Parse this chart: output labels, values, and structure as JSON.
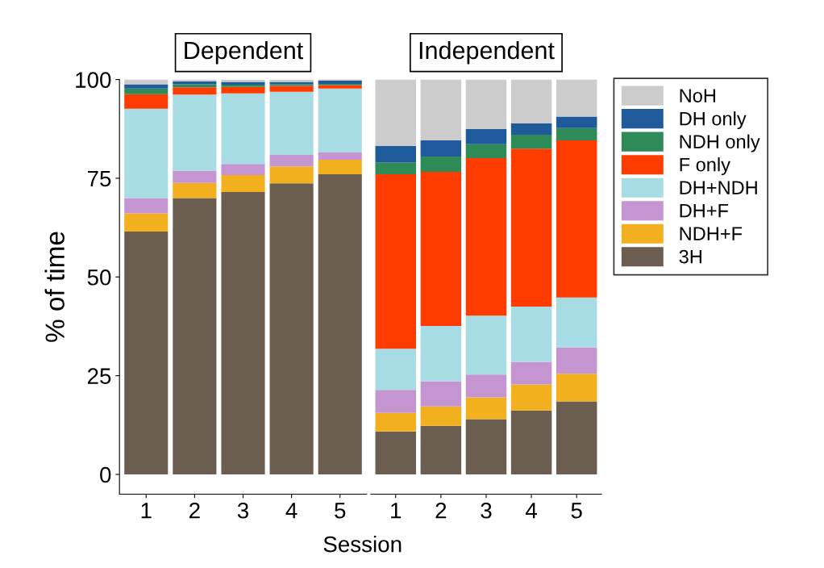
{
  "chart_data": [
    {
      "type": "bar",
      "title": "Dependent",
      "ylabel": "% of time",
      "xlabel": "Session",
      "stacked": true,
      "categories": [
        "1",
        "2",
        "3",
        "4",
        "5"
      ],
      "ylim": [
        -5,
        100
      ],
      "yticks": [
        0,
        25,
        50,
        75,
        100
      ],
      "grid": false,
      "legend": "right",
      "series": [
        {
          "name": "3H",
          "color": "#6b5d50",
          "values": [
            61.5,
            70,
            71.5,
            73.7,
            76
          ]
        },
        {
          "name": "NDH+F",
          "color": "#f2b01e",
          "values": [
            4.6,
            3.8,
            4.3,
            4.3,
            3.7
          ]
        },
        {
          "name": "DH+F",
          "color": "#c495d0",
          "values": [
            3.9,
            3.1,
            2.8,
            2.9,
            1.8
          ]
        },
        {
          "name": "DH+NDH",
          "color": "#a8dce4",
          "values": [
            22.6,
            19.3,
            17.9,
            16,
            16.2
          ]
        },
        {
          "name": "F only",
          "color": "#ff3c00",
          "values": [
            3.7,
            1.8,
            1.6,
            1.5,
            0.9
          ]
        },
        {
          "name": "NDH only",
          "color": "#2e8b57",
          "values": [
            1.4,
            0.8,
            0.6,
            0.4,
            0.3
          ]
        },
        {
          "name": "DH only",
          "color": "#1f5a9a",
          "values": [
            1.1,
            0.7,
            0.7,
            0.6,
            0.8
          ]
        },
        {
          "name": "NoH",
          "color": "#cccccc",
          "values": [
            1.2,
            0.5,
            0.6,
            0.6,
            0.6
          ]
        }
      ]
    },
    {
      "type": "bar",
      "title": "Independent",
      "stacked": true,
      "categories": [
        "1",
        "2",
        "3",
        "4",
        "5"
      ],
      "ylim": [
        -5,
        100
      ],
      "yticks": [
        0,
        25,
        50,
        75,
        100
      ],
      "tick_labels": "x",
      "grid": false,
      "series": [
        {
          "color": "#6b5d50",
          "values": [
            10.9,
            12.3,
            14,
            16.2,
            18.5
          ]
        },
        {
          "color": "#f2b01e",
          "values": [
            4.7,
            4.9,
            5.5,
            6.6,
            7
          ]
        },
        {
          "color": "#c495d0",
          "values": [
            5.8,
            6.4,
            5.8,
            5.7,
            6.7
          ]
        },
        {
          "color": "#a8dce4",
          "values": [
            10.4,
            14,
            14.9,
            14,
            12.6
          ]
        },
        {
          "color": "#ff3c00",
          "values": [
            44.2,
            39,
            39.9,
            40,
            39.8
          ]
        },
        {
          "color": "#2e8b57",
          "values": [
            3,
            3.9,
            3.5,
            3.5,
            3.1
          ]
        },
        {
          "color": "#1f5a9a",
          "values": [
            4.2,
            4.1,
            3.9,
            2.9,
            2.9
          ]
        },
        {
          "color": "#cccccc",
          "values": [
            16.8,
            15.4,
            12.5,
            11.1,
            9.4
          ]
        }
      ]
    }
  ]
}
